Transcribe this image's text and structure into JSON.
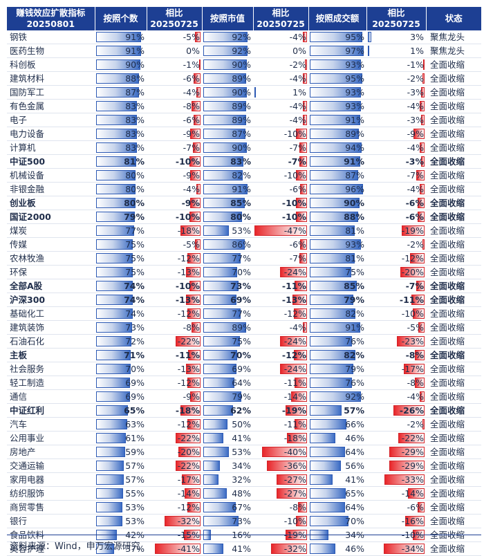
{
  "header": {
    "col1_line1": "赚钱效应扩散指标",
    "col1_line2": "20250801",
    "count": "按照个数",
    "chg1_line1": "相比",
    "chg1_line2": "20250725",
    "mcap": "按照市值",
    "chg2_line1": "相比",
    "chg2_line2": "20250725",
    "turnover": "按照成交额",
    "chg3_line1": "相比",
    "chg3_line2": "20250725",
    "status": "状态"
  },
  "rows": [
    {
      "name": "钢铁",
      "count": "91%",
      "c1": "-5%",
      "mcap": "92%",
      "c2": "-4%",
      "turn": "95%",
      "c3": "3%",
      "status": "聚焦龙头",
      "bold": false
    },
    {
      "name": "医药生物",
      "count": "91%",
      "c1": "0%",
      "mcap": "92%",
      "c2": "0%",
      "turn": "97%",
      "c3": "1%",
      "status": "聚焦龙头",
      "bold": false
    },
    {
      "name": "科创板",
      "count": "90%",
      "c1": "-1%",
      "mcap": "90%",
      "c2": "-2%",
      "turn": "93%",
      "c3": "-1%",
      "status": "全面收缩",
      "bold": false
    },
    {
      "name": "建筑材料",
      "count": "88%",
      "c1": "-6%",
      "mcap": "89%",
      "c2": "-4%",
      "turn": "95%",
      "c3": "-2%",
      "status": "全面收缩",
      "bold": false
    },
    {
      "name": "国防军工",
      "count": "87%",
      "c1": "-4%",
      "mcap": "90%",
      "c2": "1%",
      "turn": "93%",
      "c3": "-3%",
      "status": "全面收缩",
      "bold": false
    },
    {
      "name": "有色金属",
      "count": "83%",
      "c1": "-8%",
      "mcap": "89%",
      "c2": "-4%",
      "turn": "93%",
      "c3": "-4%",
      "status": "全面收缩",
      "bold": false
    },
    {
      "name": "电子",
      "count": "83%",
      "c1": "-6%",
      "mcap": "89%",
      "c2": "-4%",
      "turn": "91%",
      "c3": "-3%",
      "status": "全面收缩",
      "bold": false
    },
    {
      "name": "电力设备",
      "count": "83%",
      "c1": "-9%",
      "mcap": "87%",
      "c2": "-10%",
      "turn": "89%",
      "c3": "-9%",
      "status": "全面收缩",
      "bold": false
    },
    {
      "name": "计算机",
      "count": "83%",
      "c1": "-7%",
      "mcap": "90%",
      "c2": "-7%",
      "turn": "94%",
      "c3": "-4%",
      "status": "全面收缩",
      "bold": false
    },
    {
      "name": "中证500",
      "count": "81%",
      "c1": "-10%",
      "mcap": "83%",
      "c2": "-7%",
      "turn": "91%",
      "c3": "-3%",
      "status": "全面收缩",
      "bold": true
    },
    {
      "name": "机械设备",
      "count": "80%",
      "c1": "-9%",
      "mcap": "82%",
      "c2": "-10%",
      "turn": "87%",
      "c3": "-7%",
      "status": "全面收缩",
      "bold": false
    },
    {
      "name": "非银金融",
      "count": "80%",
      "c1": "-4%",
      "mcap": "91%",
      "c2": "-6%",
      "turn": "96%",
      "c3": "-4%",
      "status": "全面收缩",
      "bold": false
    },
    {
      "name": "创业板",
      "count": "80%",
      "c1": "-9%",
      "mcap": "85%",
      "c2": "-10%",
      "turn": "90%",
      "c3": "-6%",
      "status": "全面收缩",
      "bold": true
    },
    {
      "name": "国证2000",
      "count": "79%",
      "c1": "-10%",
      "mcap": "80%",
      "c2": "-10%",
      "turn": "88%",
      "c3": "-6%",
      "status": "全面收缩",
      "bold": true
    },
    {
      "name": "煤炭",
      "count": "77%",
      "c1": "-18%",
      "mcap": "53%",
      "c2": "-47%",
      "turn": "81%",
      "c3": "-19%",
      "status": "全面收缩",
      "bold": false
    },
    {
      "name": "传媒",
      "count": "75%",
      "c1": "-5%",
      "mcap": "86%",
      "c2": "-6%",
      "turn": "93%",
      "c3": "-2%",
      "status": "全面收缩",
      "bold": false
    },
    {
      "name": "农林牧渔",
      "count": "75%",
      "c1": "-12%",
      "mcap": "77%",
      "c2": "-7%",
      "turn": "81%",
      "c3": "-12%",
      "status": "全面收缩",
      "bold": false
    },
    {
      "name": "环保",
      "count": "75%",
      "c1": "-13%",
      "mcap": "70%",
      "c2": "-24%",
      "turn": "75%",
      "c3": "-20%",
      "status": "全面收缩",
      "bold": false
    },
    {
      "name": "全部A股",
      "count": "74%",
      "c1": "-10%",
      "mcap": "73%",
      "c2": "-11%",
      "turn": "85%",
      "c3": "-7%",
      "status": "全面收缩",
      "bold": true
    },
    {
      "name": "沪深300",
      "count": "74%",
      "c1": "-13%",
      "mcap": "69%",
      "c2": "-13%",
      "turn": "79%",
      "c3": "-11%",
      "status": "全面收缩",
      "bold": true
    },
    {
      "name": "基础化工",
      "count": "74%",
      "c1": "-12%",
      "mcap": "77%",
      "c2": "-12%",
      "turn": "82%",
      "c3": "-10%",
      "status": "全面收缩",
      "bold": false
    },
    {
      "name": "建筑装饰",
      "count": "73%",
      "c1": "-8%",
      "mcap": "89%",
      "c2": "-4%",
      "turn": "91%",
      "c3": "-5%",
      "status": "全面收缩",
      "bold": false
    },
    {
      "name": "石油石化",
      "count": "72%",
      "c1": "-22%",
      "mcap": "75%",
      "c2": "-24%",
      "turn": "76%",
      "c3": "-23%",
      "status": "全面收缩",
      "bold": false
    },
    {
      "name": "主板",
      "count": "71%",
      "c1": "-11%",
      "mcap": "70%",
      "c2": "-12%",
      "turn": "82%",
      "c3": "-8%",
      "status": "全面收缩",
      "bold": true
    },
    {
      "name": "社会服务",
      "count": "70%",
      "c1": "-13%",
      "mcap": "69%",
      "c2": "-24%",
      "turn": "79%",
      "c3": "-17%",
      "status": "全面收缩",
      "bold": false
    },
    {
      "name": "轻工制造",
      "count": "69%",
      "c1": "-12%",
      "mcap": "64%",
      "c2": "-11%",
      "turn": "76%",
      "c3": "-8%",
      "status": "全面收缩",
      "bold": false
    },
    {
      "name": "通信",
      "count": "69%",
      "c1": "-9%",
      "mcap": "79%",
      "c2": "-14%",
      "turn": "92%",
      "c3": "-4%",
      "status": "全面收缩",
      "bold": false
    },
    {
      "name": "中证红利",
      "count": "65%",
      "c1": "-18%",
      "mcap": "62%",
      "c2": "-19%",
      "turn": "57%",
      "c3": "-26%",
      "status": "全面收缩",
      "bold": true
    },
    {
      "name": "汽车",
      "count": "63%",
      "c1": "-12%",
      "mcap": "50%",
      "c2": "-11%",
      "turn": "66%",
      "c3": "-2%",
      "status": "全面收缩",
      "bold": false
    },
    {
      "name": "公用事业",
      "count": "61%",
      "c1": "-22%",
      "mcap": "41%",
      "c2": "-18%",
      "turn": "46%",
      "c3": "-22%",
      "status": "全面收缩",
      "bold": false
    },
    {
      "name": "房地产",
      "count": "59%",
      "c1": "-20%",
      "mcap": "53%",
      "c2": "-40%",
      "turn": "64%",
      "c3": "-29%",
      "status": "全面收缩",
      "bold": false
    },
    {
      "name": "交通运输",
      "count": "57%",
      "c1": "-22%",
      "mcap": "34%",
      "c2": "-36%",
      "turn": "56%",
      "c3": "-29%",
      "status": "全面收缩",
      "bold": false
    },
    {
      "name": "家用电器",
      "count": "57%",
      "c1": "-17%",
      "mcap": "32%",
      "c2": "-27%",
      "turn": "41%",
      "c3": "-33%",
      "status": "全面收缩",
      "bold": false
    },
    {
      "name": "纺织服饰",
      "count": "55%",
      "c1": "-14%",
      "mcap": "48%",
      "c2": "-27%",
      "turn": "65%",
      "c3": "-14%",
      "status": "全面收缩",
      "bold": false
    },
    {
      "name": "商贸零售",
      "count": "53%",
      "c1": "-12%",
      "mcap": "67%",
      "c2": "-8%",
      "turn": "64%",
      "c3": "-6%",
      "status": "全面收缩",
      "bold": false
    },
    {
      "name": "银行",
      "count": "53%",
      "c1": "-32%",
      "mcap": "73%",
      "c2": "-10%",
      "turn": "70%",
      "c3": "-16%",
      "status": "全面收缩",
      "bold": false
    },
    {
      "name": "食品饮料",
      "count": "42%",
      "c1": "-15%",
      "mcap": "16%",
      "c2": "-19%",
      "turn": "34%",
      "c3": "-10%",
      "status": "全面收缩",
      "bold": false
    },
    {
      "name": "美容护理",
      "count": "37%",
      "c1": "-41%",
      "mcap": "41%",
      "c2": "-32%",
      "turn": "46%",
      "c3": "-34%",
      "status": "全面收缩",
      "bold": false
    }
  ],
  "source": "资料来源：Wind，申万宏源研究",
  "colors": {
    "header_bg": "#1d3f93",
    "positive_bar": "#3c6cc4",
    "negative_bar": "#e8262a"
  }
}
